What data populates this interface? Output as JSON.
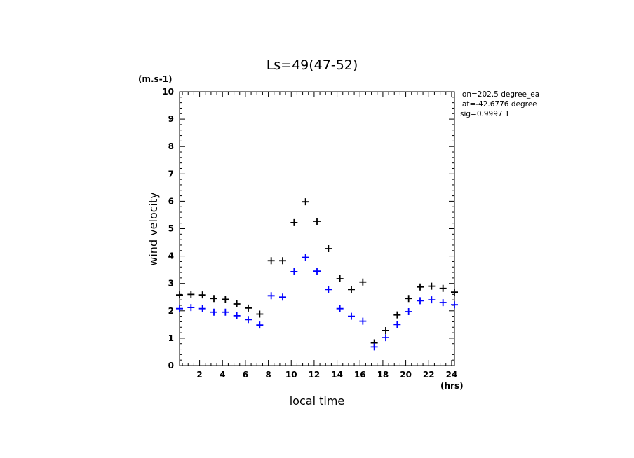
{
  "chart_data": {
    "type": "scatter",
    "title": "Ls=49(47-52)",
    "xlabel": "local time",
    "ylabel": "wind velocity",
    "x_unit": "(hrs)",
    "y_unit": "(m.s-1)",
    "xlim": [
      0.25,
      24.25
    ],
    "ylim": [
      0,
      10
    ],
    "xticks": [
      2,
      4,
      6,
      8,
      10,
      12,
      14,
      16,
      18,
      20,
      22,
      24
    ],
    "yticks": [
      0,
      1,
      2,
      3,
      4,
      5,
      6,
      7,
      8,
      9,
      10
    ],
    "info_lines": [
      "lon=202.5 degree_ea",
      "lat=-42.6776 degree",
      "sig=0.9997 1"
    ],
    "marker": "+",
    "x": [
      0.25,
      1.25,
      2.25,
      3.25,
      4.25,
      5.25,
      6.25,
      7.25,
      8.25,
      9.25,
      10.25,
      11.25,
      12.25,
      13.25,
      14.25,
      15.25,
      16.25,
      17.25,
      18.25,
      19.25,
      20.25,
      21.25,
      22.25,
      23.25,
      24.25
    ],
    "series": [
      {
        "color": "#000000",
        "values": [
          2.58,
          2.6,
          2.58,
          2.45,
          2.42,
          2.25,
          2.1,
          1.88,
          3.83,
          3.83,
          5.22,
          5.98,
          5.27,
          4.27,
          3.17,
          2.78,
          3.05,
          0.83,
          1.28,
          1.85,
          2.45,
          2.87,
          2.9,
          2.82,
          2.68
        ]
      },
      {
        "color": "#0000ff",
        "values": [
          2.08,
          2.12,
          2.08,
          1.95,
          1.95,
          1.82,
          1.68,
          1.48,
          2.55,
          2.5,
          3.43,
          3.95,
          3.45,
          2.78,
          2.08,
          1.8,
          1.62,
          0.68,
          1.02,
          1.5,
          1.97,
          2.37,
          2.4,
          2.3,
          2.22
        ]
      }
    ]
  }
}
